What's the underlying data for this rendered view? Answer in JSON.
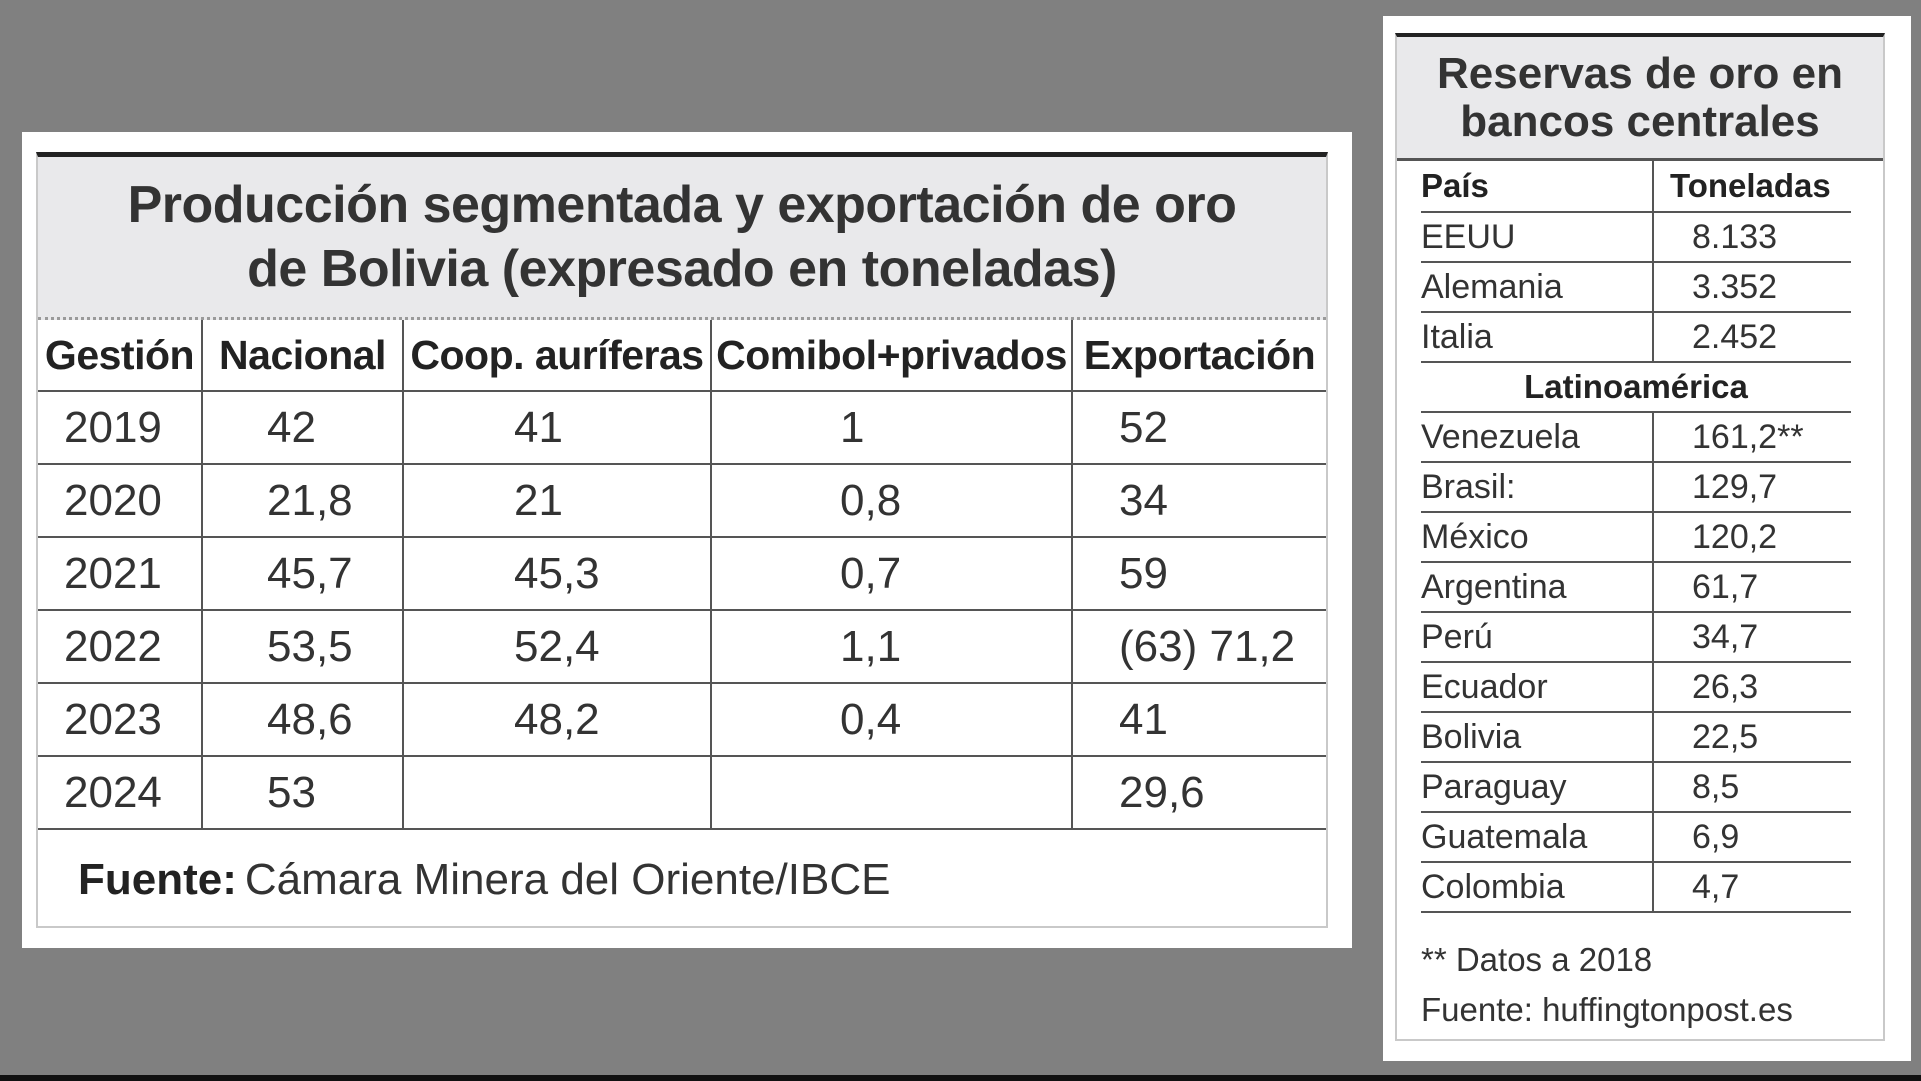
{
  "production_table": {
    "title_line1": "Producción segmentada y exportación de oro",
    "title_line2": "de Bolivia (expresado en toneladas)",
    "headers": [
      "Gestión",
      "Nacional",
      "Coop. auríferas",
      "Comibol+privados",
      "Exportación"
    ],
    "rows": [
      [
        "2019",
        "42",
        "41",
        "1",
        "52"
      ],
      [
        "2020",
        "21,8",
        "21",
        "0,8",
        "34"
      ],
      [
        "2021",
        "45,7",
        "45,3",
        "0,7",
        "59"
      ],
      [
        "2022",
        "53,5",
        "52,4",
        "1,1",
        "(63) 71,2"
      ],
      [
        "2023",
        "48,6",
        "48,2",
        "0,4",
        "41"
      ],
      [
        "2024",
        "53",
        "",
        "",
        "29,6"
      ]
    ],
    "source_label": "Fuente:",
    "source_text": "Cámara Minera del Oriente/IBCE"
  },
  "reserves_table": {
    "title_line1": "Reservas de oro en",
    "title_line2": "bancos centrales",
    "headers": [
      "País",
      "Toneladas"
    ],
    "rows_top": [
      [
        "EEUU",
        "8.133"
      ],
      [
        "Alemania",
        "3.352"
      ],
      [
        "Italia",
        "2.452"
      ]
    ],
    "region_label": "Latinoamérica",
    "rows_latam": [
      [
        "Venezuela",
        "161,2**"
      ],
      [
        "Brasil:",
        "129,7"
      ],
      [
        "México",
        "120,2"
      ],
      [
        "Argentina",
        "61,7"
      ],
      [
        "Perú",
        "34,7"
      ],
      [
        "Ecuador",
        "26,3"
      ],
      [
        "Bolivia",
        "22,5"
      ],
      [
        "Paraguay",
        "8,5"
      ],
      [
        "Guatemala",
        "6,9"
      ],
      [
        "Colombia",
        "4,7"
      ]
    ],
    "note": "** Datos a 2018",
    "source": "Fuente: huffingtonpost.es"
  },
  "chart_data": [
    {
      "type": "table",
      "title": "Producción segmentada y exportación de oro de Bolivia (expresado en toneladas)",
      "columns": [
        "Gestión",
        "Nacional",
        "Coop. auríferas",
        "Comibol+privados",
        "Exportación"
      ],
      "categories": [
        "2019",
        "2020",
        "2021",
        "2022",
        "2023",
        "2024"
      ],
      "series": [
        {
          "name": "Nacional",
          "values": [
            42,
            21.8,
            45.7,
            53.5,
            48.6,
            53
          ]
        },
        {
          "name": "Coop. auríferas",
          "values": [
            41,
            21,
            45.3,
            52.4,
            48.2,
            null
          ]
        },
        {
          "name": "Comibol+privados",
          "values": [
            1,
            0.8,
            0.7,
            1.1,
            0.4,
            null
          ]
        },
        {
          "name": "Exportación",
          "values": [
            52,
            34,
            59,
            71.2,
            41,
            29.6
          ]
        }
      ],
      "annotations": [
        "2022 Exportación: (63) 71,2"
      ],
      "source": "Cámara Minera del Oriente/IBCE"
    },
    {
      "type": "table",
      "title": "Reservas de oro en bancos centrales",
      "columns": [
        "País",
        "Toneladas"
      ],
      "categories": [
        "EEUU",
        "Alemania",
        "Italia",
        "Venezuela",
        "Brasil",
        "México",
        "Argentina",
        "Perú",
        "Ecuador",
        "Bolivia",
        "Paraguay",
        "Guatemala",
        "Colombia"
      ],
      "values": [
        8133,
        3352,
        2452,
        161.2,
        129.7,
        120.2,
        61.7,
        34.7,
        26.3,
        22.5,
        8.5,
        6.9,
        4.7
      ],
      "groups": {
        "Latinoamérica": [
          "Venezuela",
          "Brasil",
          "México",
          "Argentina",
          "Perú",
          "Ecuador",
          "Bolivia",
          "Paraguay",
          "Guatemala",
          "Colombia"
        ]
      },
      "note": "** Datos a 2018",
      "source": "huffingtonpost.es"
    }
  ]
}
